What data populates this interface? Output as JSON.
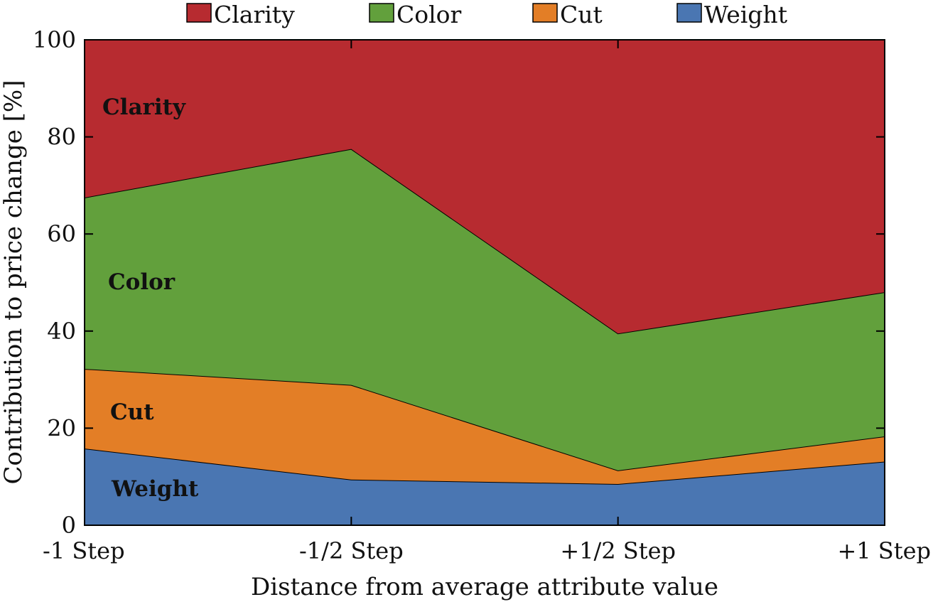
{
  "chart_data": {
    "type": "area",
    "stacked": true,
    "categories": [
      "-1 Step",
      "-1/2 Step",
      "+1/2 Step",
      "+1 Step"
    ],
    "series": [
      {
        "name": "Weight",
        "color": "#4a76b2",
        "values": [
          15.8,
          9.4,
          8.5,
          13.1
        ]
      },
      {
        "name": "Cut",
        "color": "#e37e26",
        "values": [
          16.4,
          19.5,
          2.8,
          5.2
        ]
      },
      {
        "name": "Color",
        "color": "#62a03c",
        "values": [
          35.3,
          48.6,
          28.2,
          29.7
        ]
      },
      {
        "name": "Clarity",
        "color": "#b72b30",
        "values": [
          32.5,
          22.5,
          60.5,
          52.0
        ]
      }
    ],
    "legend_order": [
      "Clarity",
      "Color",
      "Cut",
      "Weight"
    ],
    "area_labels": [
      "Clarity",
      "Color",
      "Cut",
      "Weight"
    ],
    "xlabel": "Distance from average attribute value",
    "ylabel": "Contribution to price change [%]",
    "ylim": [
      0,
      100
    ],
    "yticks": [
      0,
      20,
      40,
      60,
      80,
      100
    ],
    "legend_position": "top",
    "grid": false
  }
}
